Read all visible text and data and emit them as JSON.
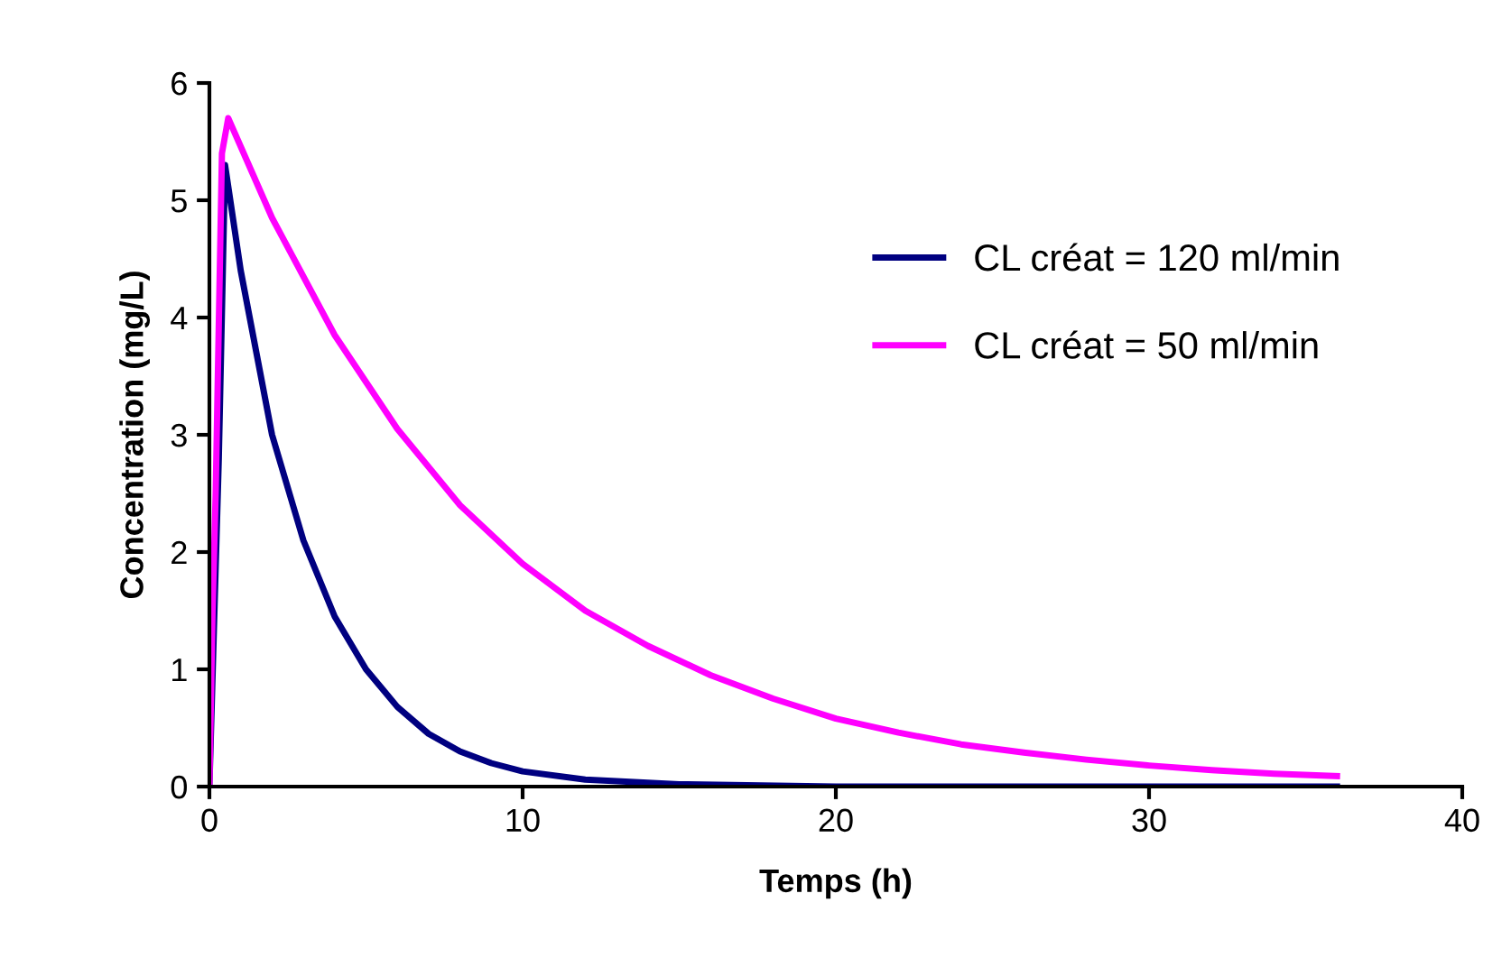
{
  "chart_data": {
    "type": "line",
    "xlabel": "Temps (h)",
    "ylabel": "Concentration (mg/L)",
    "xlim": [
      0,
      40
    ],
    "xticks": [
      0,
      10,
      20,
      30,
      40
    ],
    "ylim": [
      0,
      6
    ],
    "yticks": [
      0,
      1,
      2,
      3,
      4,
      5,
      6
    ],
    "grid": false,
    "legend": "top right",
    "marker": "none",
    "line_style": "solid",
    "series": [
      {
        "name": "CL créat = 120 ml/min",
        "color": "#000080",
        "x": [
          0,
          0.3,
          0.5,
          1,
          1.5,
          2,
          3,
          4,
          5,
          6,
          7,
          8,
          9,
          10,
          12,
          15,
          20,
          36
        ],
        "values": [
          0,
          2.8,
          5.3,
          4.4,
          3.7,
          3.0,
          2.1,
          1.45,
          1.0,
          0.68,
          0.45,
          0.3,
          0.2,
          0.13,
          0.06,
          0.02,
          0,
          0
        ]
      },
      {
        "name": "CL créat = 50 ml/min",
        "color": "#ff00ff",
        "x": [
          0,
          0.1,
          0.2,
          0.4,
          0.6,
          2,
          4,
          6,
          8,
          10,
          12,
          14,
          16,
          18,
          20,
          22,
          24,
          26,
          28,
          30,
          32,
          34,
          36
        ],
        "values": [
          0,
          1.5,
          2.5,
          5.4,
          5.7,
          4.85,
          3.85,
          3.05,
          2.4,
          1.9,
          1.5,
          1.2,
          0.95,
          0.75,
          0.58,
          0.46,
          0.36,
          0.29,
          0.23,
          0.18,
          0.14,
          0.11,
          0.09
        ]
      }
    ]
  }
}
